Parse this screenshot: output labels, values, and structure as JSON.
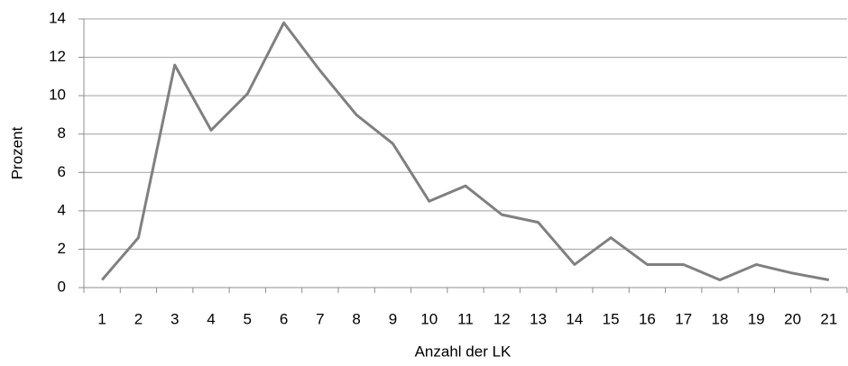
{
  "chart_data": {
    "type": "line",
    "xlabel": "Anzahl der LK",
    "ylabel": "Prozent",
    "categories": [
      "1",
      "2",
      "3",
      "4",
      "5",
      "6",
      "7",
      "8",
      "9",
      "10",
      "11",
      "12",
      "13",
      "14",
      "15",
      "16",
      "17",
      "18",
      "19",
      "20",
      "21"
    ],
    "series": [
      {
        "name": "Prozent",
        "color": "#808080",
        "values": [
          0.4,
          2.6,
          11.6,
          8.2,
          10.1,
          13.8,
          11.3,
          9.0,
          7.5,
          4.5,
          5.3,
          3.8,
          3.4,
          1.2,
          2.6,
          1.2,
          1.2,
          0.4,
          1.2,
          0.75,
          0.4
        ]
      }
    ],
    "ylim": [
      0,
      14
    ],
    "yticks": [
      0,
      2,
      4,
      6,
      8,
      10,
      12,
      14
    ],
    "grid": true
  }
}
